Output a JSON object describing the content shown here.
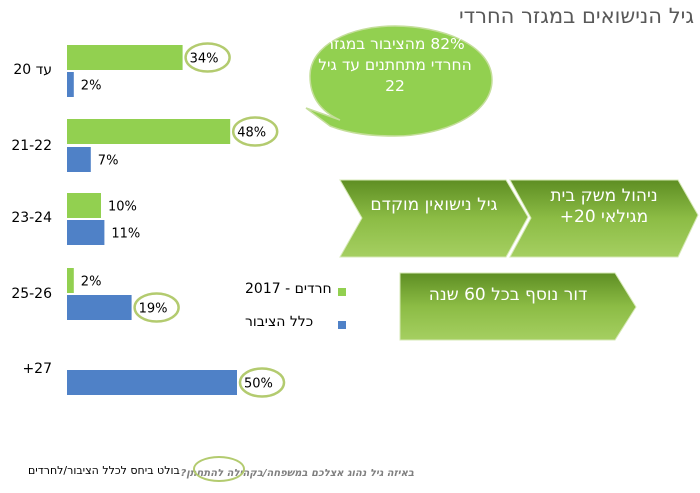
{
  "title": "גיל הנישואים במגזר החרדי",
  "chart_data": {
    "type": "bar",
    "orientation": "horizontal",
    "categories": [
      "עד 20",
      "21-22",
      "23-24",
      "25-26",
      "+27"
    ],
    "series": [
      {
        "name": "חרדים - 2017",
        "color": "#92d050",
        "values": [
          34,
          48,
          10,
          2,
          null
        ],
        "labels": [
          "34%",
          "48%",
          "10%",
          "2%",
          ""
        ]
      },
      {
        "name": "כלל הציבור",
        "color": "#4f81c7",
        "values": [
          2,
          7,
          11,
          19,
          50
        ],
        "labels": [
          "2%",
          "7%",
          "11%",
          "19%",
          "50%"
        ]
      }
    ],
    "highlighted": [
      "34%",
      "48%",
      "19%",
      "50%"
    ],
    "xlim": [
      0,
      50
    ],
    "legend_position": "right"
  },
  "bubble": {
    "text": "82% מהציבור במגזר החרדי מתחתנים עד גיל 22",
    "color": "#92d050"
  },
  "arrows": [
    {
      "text": "ניהול משק בית מגילאי 20+"
    },
    {
      "text": "גיל נישואין מוקדם"
    },
    {
      "text": "דור נוסף בכל 60 שנה"
    }
  ],
  "colors": {
    "green": "#92d050",
    "blue": "#4f81c7",
    "oval": "#b3cb6f",
    "arrow_dark": "#6b9a2b",
    "arrow_light": "#9bc94f"
  },
  "footnote": "בולט ביחס לכלל הציבור/לחרדים",
  "footer_question": "באיזה גיל נהוג אצלכם במשפחה/בקהילה להתחתן?"
}
